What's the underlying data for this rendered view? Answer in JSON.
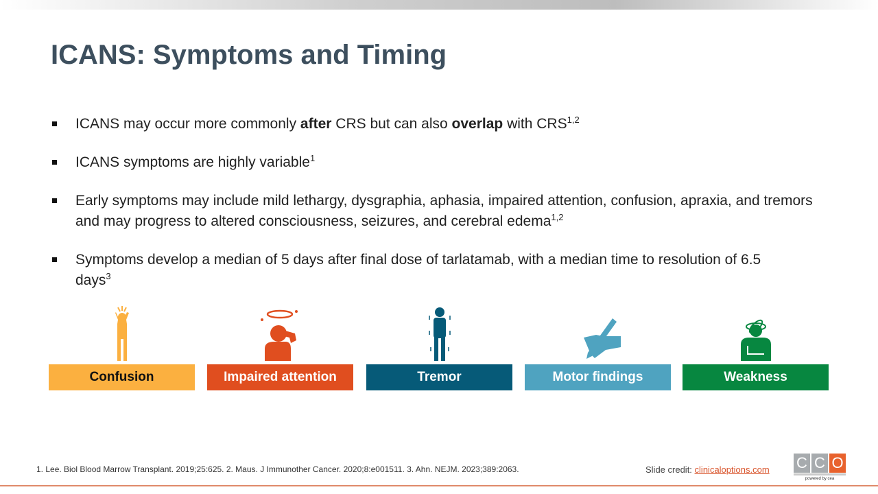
{
  "title": "ICANS: Symptoms and Timing",
  "bullets": [
    {
      "parts": [
        "ICANS may occur more commonly ",
        "after",
        " CRS but can also ",
        "overlap",
        " with CRS"
      ],
      "sup": "1,2"
    },
    {
      "text": "ICANS symptoms are highly variable",
      "sup": "1"
    },
    {
      "text": "Early symptoms may include mild lethargy, dysgraphia, aphasia, impaired attention, confusion, apraxia, and tremors and may progress to altered consciousness, seizures, and cerebral edema",
      "sup": "1,2"
    },
    {
      "text": "Symptoms develop a median of 5 days after final dose of tarlatamab, with a median time to resolution of 6.5 days",
      "sup": "3"
    }
  ],
  "symptoms": [
    {
      "label": "Confusion",
      "color": "#fbb040",
      "icon": "confused-person-icon"
    },
    {
      "label": "Impaired attention",
      "color": "#e04e1f",
      "icon": "dizzy-person-icon"
    },
    {
      "label": "Tremor",
      "color": "#065a78",
      "icon": "trembling-person-icon"
    },
    {
      "label": "Motor findings",
      "color": "#4fa3c0",
      "icon": "hand-writing-icon"
    },
    {
      "label": "Weakness",
      "color": "#078740",
      "icon": "weak-person-icon"
    }
  ],
  "footer": {
    "references": "1. Lee. Biol Blood Marrow Transplant. 2019;25:625. 2. Maus. J Immunother Cancer. 2020;8:e001511. 3. Ahn. NEJM. 2023;389:2063.",
    "credit_label": "Slide credit: ",
    "credit_link": "clinicaloptions.com",
    "logo_letters": [
      "C",
      "C",
      "O"
    ],
    "logo_tagline": "powered by cea"
  }
}
